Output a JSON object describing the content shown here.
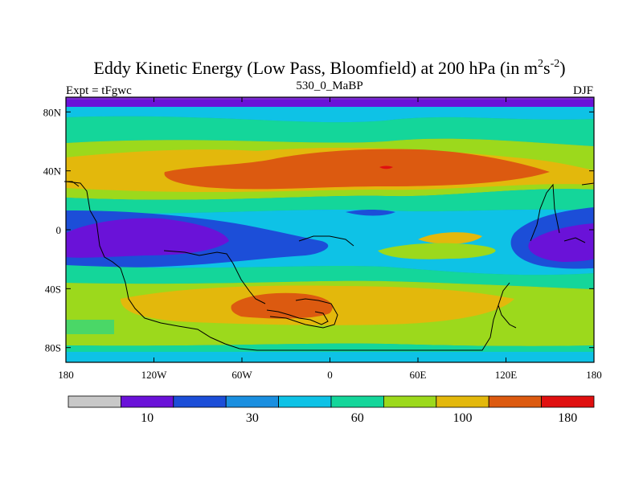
{
  "title": {
    "prefix": "Eddy Kinetic Energy (Low Pass, Bloomfield) at 200 hPa (in m",
    "sup1": "2",
    "mid": "s",
    "sup2": "-2",
    "suffix": ")"
  },
  "subtitle_left": "Expt = tFgwc",
  "subtitle_center": "530_0_MaBP",
  "subtitle_right": "DJF",
  "lat_ticks": [
    {
      "label": "80N",
      "lat": 80
    },
    {
      "label": "40N",
      "lat": 40
    },
    {
      "label": "0",
      "lat": 0
    },
    {
      "label": "40S",
      "lat": -40
    },
    {
      "label": "80S",
      "lat": -80
    }
  ],
  "lon_ticks": [
    {
      "label": "180",
      "lon": -180
    },
    {
      "label": "120W",
      "lon": -120
    },
    {
      "label": "60W",
      "lon": -60
    },
    {
      "label": "0",
      "lon": 0
    },
    {
      "label": "60E",
      "lon": 60
    },
    {
      "label": "120E",
      "lon": 120
    },
    {
      "label": "180",
      "lon": 180
    }
  ],
  "colorbar": {
    "colors": [
      "#c8c8c8",
      "#6a12d8",
      "#1c4ed8",
      "#1a8fe0",
      "#0ec2e6",
      "#14d69a",
      "#9cd91c",
      "#e3b80c",
      "#dc5a10",
      "#e01010"
    ],
    "labels": [
      {
        "text": "10",
        "boundary": 1
      },
      {
        "text": "30",
        "boundary": 3
      },
      {
        "text": "60",
        "boundary": 5
      },
      {
        "text": "100",
        "boundary": 7
      },
      {
        "text": "180",
        "boundary": 9
      }
    ]
  },
  "chart_data": {
    "type": "heatmap",
    "xlabel": "",
    "ylabel": "",
    "xlim": [
      -180,
      180
    ],
    "ylim": [
      -90,
      90
    ],
    "color_levels": [
      10,
      20,
      30,
      45,
      60,
      80,
      100,
      140,
      180
    ]
  }
}
